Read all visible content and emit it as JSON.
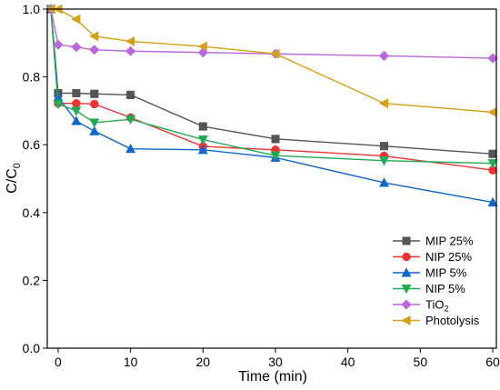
{
  "chart_data": {
    "type": "line",
    "xlabel": "Time (min)",
    "ylabel": "C/C",
    "ylabel_subscript": "0",
    "xlim": [
      -1.5,
      60.5
    ],
    "ylim": [
      0,
      1.0
    ],
    "xticks": [
      0,
      10,
      20,
      30,
      40,
      50,
      60
    ],
    "yticks": [
      0.0,
      0.2,
      0.4,
      0.6,
      0.8,
      1.0
    ],
    "xtick_labels": [
      "0",
      "10",
      "20",
      "30",
      "40",
      "50",
      "60"
    ],
    "ytick_labels": [
      "0.0",
      "0.2",
      "0.4",
      "0.6",
      "0.8",
      "1.0"
    ],
    "legend_position": "bottom-right",
    "series": [
      {
        "name": "MIP 25%",
        "color": "#555555",
        "marker": "square",
        "points": [
          [
            -1,
            1.0
          ],
          [
            0,
            0.752
          ],
          [
            2.5,
            0.752
          ],
          [
            5,
            0.75
          ],
          [
            10,
            0.747
          ],
          [
            20,
            0.654
          ],
          [
            30,
            0.617
          ],
          [
            45,
            0.596
          ],
          [
            60,
            0.573
          ]
        ]
      },
      {
        "name": "NIP 25%",
        "color": "#ee3333",
        "marker": "circle",
        "points": [
          [
            -1,
            1.0
          ],
          [
            0,
            0.722
          ],
          [
            2.5,
            0.722
          ],
          [
            5,
            0.72
          ],
          [
            10,
            0.68
          ],
          [
            20,
            0.595
          ],
          [
            30,
            0.585
          ],
          [
            45,
            0.567
          ],
          [
            60,
            0.525
          ]
        ]
      },
      {
        "name": "MIP 5%",
        "color": "#1166cc",
        "marker": "triangle-up",
        "points": [
          [
            -1,
            1.0
          ],
          [
            0,
            0.74
          ],
          [
            2.5,
            0.67
          ],
          [
            5,
            0.64
          ],
          [
            10,
            0.588
          ],
          [
            20,
            0.585
          ],
          [
            30,
            0.562
          ],
          [
            45,
            0.488
          ],
          [
            60,
            0.43
          ]
        ]
      },
      {
        "name": "NIP 5%",
        "color": "#22aa55",
        "marker": "triangle-down",
        "points": [
          [
            -1,
            1.0
          ],
          [
            0,
            0.72
          ],
          [
            2.5,
            0.7
          ],
          [
            5,
            0.665
          ],
          [
            10,
            0.675
          ],
          [
            20,
            0.615
          ],
          [
            30,
            0.568
          ],
          [
            45,
            0.553
          ],
          [
            60,
            0.545
          ]
        ]
      },
      {
        "name": "TiO",
        "name_subscript": "2",
        "color": "#bb66dd",
        "marker": "diamond",
        "points": [
          [
            -1,
            1.0
          ],
          [
            0,
            0.895
          ],
          [
            2.5,
            0.888
          ],
          [
            5,
            0.88
          ],
          [
            10,
            0.876
          ],
          [
            20,
            0.872
          ],
          [
            30,
            0.868
          ],
          [
            45,
            0.862
          ],
          [
            60,
            0.855
          ]
        ]
      },
      {
        "name": "Photolysis",
        "color": "#d4a017",
        "marker": "triangle-left",
        "points": [
          [
            -1,
            1.0
          ],
          [
            0,
            1.0
          ],
          [
            2.5,
            0.97
          ],
          [
            5,
            0.92
          ],
          [
            10,
            0.905
          ],
          [
            20,
            0.89
          ],
          [
            30,
            0.868
          ],
          [
            45,
            0.722
          ],
          [
            60,
            0.696
          ]
        ]
      }
    ]
  }
}
